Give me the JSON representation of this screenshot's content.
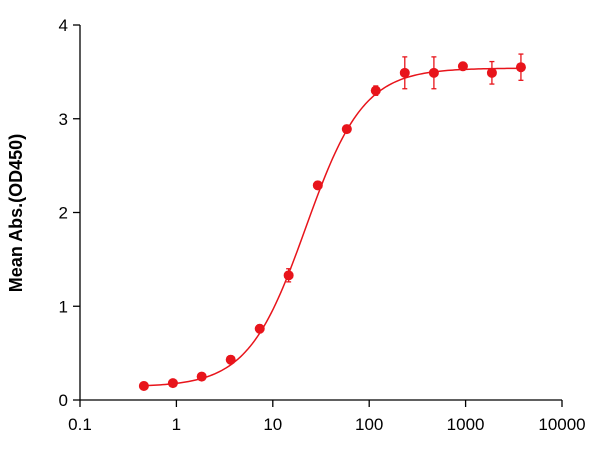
{
  "chart_data": {
    "type": "scatter",
    "title": "",
    "xlabel": "",
    "ylabel": "Mean Abs.(OD450)",
    "xscale": "log",
    "xlim": [
      0.1,
      10000
    ],
    "ylim": [
      0,
      4
    ],
    "x_ticks": [
      0.1,
      1,
      10,
      100,
      1000,
      10000
    ],
    "x_tick_labels": [
      "0.1",
      "1",
      "10",
      "100",
      "1000",
      "10000"
    ],
    "y_ticks": [
      0,
      1,
      2,
      3,
      4
    ],
    "y_tick_labels": [
      "0",
      "1",
      "2",
      "3",
      "4"
    ],
    "grid": false,
    "legend": "none",
    "color": "#e8141b",
    "fit": "sigmoidal (4-parameter logistic) curve through points",
    "series": [
      {
        "x": [
          0.46,
          0.92,
          1.83,
          3.66,
          7.32,
          14.6,
          29.3,
          58.6,
          117,
          234,
          469,
          938,
          1875,
          3750
        ],
        "y": [
          0.15,
          0.18,
          0.25,
          0.43,
          0.76,
          1.33,
          2.29,
          2.89,
          3.3,
          3.49,
          3.49,
          3.56,
          3.49,
          3.55
        ],
        "error": [
          0.03,
          0.03,
          0.03,
          0.04,
          0.04,
          0.07,
          0.04,
          0.04,
          0.05,
          0.17,
          0.17,
          0.04,
          0.12,
          0.14
        ]
      }
    ]
  }
}
